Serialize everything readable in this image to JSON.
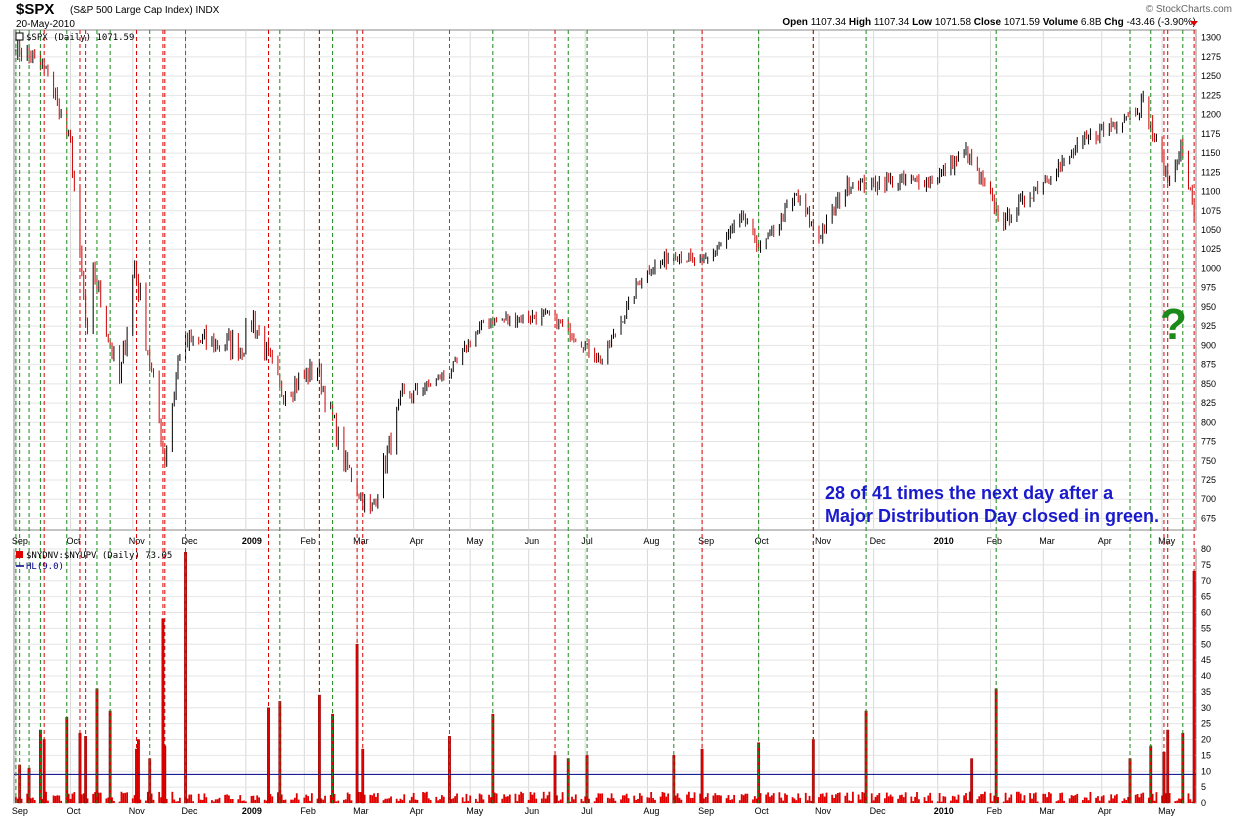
{
  "header": {
    "symbol": "$SPX",
    "name": "(S&P 500 Large Cap Index) INDX",
    "date": "20-May-2010",
    "credit": "© StockCharts.com",
    "ohlc": {
      "open_label": "Open",
      "open": "1107.34",
      "high_label": "High",
      "high": "1107.34",
      "low_label": "Low",
      "low": "1071.58",
      "close_label": "Close",
      "close": "1071.59",
      "volume_label": "Volume",
      "volume": "6.8B",
      "chg_label": "Chg",
      "chg": "-43.46 (-3.90%)"
    }
  },
  "annotation": {
    "line1": "28 of 41 times the next day after a",
    "line2": "Major Distribution Day closed in green.",
    "question_mark": "?"
  },
  "colors": {
    "up": "#000000",
    "down": "#cc0000",
    "green_line": "#1a8a1a",
    "red_line": "#dd0000",
    "bars": "#e00000",
    "hl_line": "#000088",
    "note": "#1a1acc"
  },
  "chart_data": [
    {
      "type": "line",
      "legend": "$SPX (Daily) 1071.59",
      "ylim": [
        660,
        1310
      ],
      "yticks": [
        675,
        700,
        725,
        750,
        775,
        800,
        825,
        850,
        875,
        900,
        925,
        950,
        975,
        1000,
        1025,
        1050,
        1075,
        1100,
        1125,
        1150,
        1175,
        1200,
        1225,
        1250,
        1275,
        1300
      ],
      "month_labels": [
        "Sep",
        "Oct",
        "Nov",
        "Dec",
        "2009",
        "Feb",
        "Mar",
        "Apr",
        "May",
        "Jun",
        "Jul",
        "Aug",
        "Sep",
        "Oct",
        "Nov",
        "Dec",
        "2010",
        "Feb",
        "Mar",
        "Apr",
        "May"
      ],
      "x": [
        "2008-09-02",
        "2008-09-19",
        "2008-10-01",
        "2008-10-10",
        "2008-10-13",
        "2008-10-27",
        "2008-11-04",
        "2008-11-20",
        "2008-11-28",
        "2008-12-08",
        "2008-12-31",
        "2009-01-06",
        "2009-01-20",
        "2009-02-09",
        "2009-02-23",
        "2009-03-09",
        "2009-03-26",
        "2009-04-20",
        "2009-05-08",
        "2009-06-12",
        "2009-07-10",
        "2009-07-31",
        "2009-08-17",
        "2009-09-01",
        "2009-09-23",
        "2009-10-02",
        "2009-10-21",
        "2009-11-02",
        "2009-11-17",
        "2009-12-01",
        "2009-12-31",
        "2010-01-19",
        "2010-02-08",
        "2010-02-25",
        "2010-03-26",
        "2010-04-23",
        "2010-05-07",
        "2010-05-13",
        "2010-05-20"
      ],
      "close": [
        1290,
        1255,
        1160,
        900,
        1000,
        850,
        1005,
        752,
        895,
        905,
        900,
        935,
        840,
        870,
        750,
        680,
        830,
        865,
        930,
        940,
        880,
        990,
        1020,
        1005,
        1065,
        1025,
        1095,
        1040,
        1110,
        1110,
        1115,
        1150,
        1060,
        1105,
        1170,
        1215,
        1110,
        1160,
        1072
      ]
    },
    {
      "type": "bar",
      "legend": "$NYDNV:$NYUPV (Daily) 73.05",
      "legend2": "HL(9.0)",
      "ylim": [
        0,
        80
      ],
      "yticks": [
        0,
        5,
        10,
        15,
        20,
        25,
        30,
        35,
        40,
        45,
        50,
        55,
        60,
        65,
        70,
        75,
        80
      ],
      "hl": 9,
      "spikes": [
        {
          "date": "2008-09-04",
          "value": 12
        },
        {
          "date": "2008-09-09",
          "value": 11
        },
        {
          "date": "2008-09-15",
          "value": 23
        },
        {
          "date": "2008-09-17",
          "value": 20
        },
        {
          "date": "2008-09-29",
          "value": 27
        },
        {
          "date": "2008-10-06",
          "value": 22
        },
        {
          "date": "2008-10-09",
          "value": 21
        },
        {
          "date": "2008-10-15",
          "value": 36
        },
        {
          "date": "2008-10-22",
          "value": 29
        },
        {
          "date": "2008-11-05",
          "value": 17
        },
        {
          "date": "2008-11-06",
          "value": 20
        },
        {
          "date": "2008-11-12",
          "value": 14
        },
        {
          "date": "2008-11-19",
          "value": 58
        },
        {
          "date": "2008-11-20",
          "value": 18
        },
        {
          "date": "2008-12-01",
          "value": 79
        },
        {
          "date": "2009-01-14",
          "value": 30
        },
        {
          "date": "2009-01-20",
          "value": 32
        },
        {
          "date": "2009-02-10",
          "value": 34
        },
        {
          "date": "2009-02-17",
          "value": 28
        },
        {
          "date": "2009-03-02",
          "value": 50
        },
        {
          "date": "2009-03-05",
          "value": 17
        },
        {
          "date": "2009-04-20",
          "value": 21
        },
        {
          "date": "2009-05-13",
          "value": 28
        },
        {
          "date": "2009-06-15",
          "value": 15
        },
        {
          "date": "2009-06-22",
          "value": 14
        },
        {
          "date": "2009-07-02",
          "value": 15
        },
        {
          "date": "2009-08-17",
          "value": 15
        },
        {
          "date": "2009-09-01",
          "value": 17
        },
        {
          "date": "2009-10-01",
          "value": 19
        },
        {
          "date": "2009-10-30",
          "value": 20
        },
        {
          "date": "2009-11-27",
          "value": 29
        },
        {
          "date": "2010-01-22",
          "value": 14
        },
        {
          "date": "2010-02-04",
          "value": 36
        },
        {
          "date": "2010-04-16",
          "value": 14
        },
        {
          "date": "2010-04-27",
          "value": 18
        },
        {
          "date": "2010-05-04",
          "value": 16
        },
        {
          "date": "2010-05-06",
          "value": 23
        },
        {
          "date": "2010-05-14",
          "value": 22
        },
        {
          "date": "2010-05-20",
          "value": 73
        }
      ]
    }
  ],
  "distribution_days": {
    "green": [
      "2008-09-02",
      "2008-09-04",
      "2008-09-09",
      "2008-09-15",
      "2008-09-29",
      "2008-10-15",
      "2008-10-22",
      "2008-11-12",
      "2008-12-01",
      "2009-01-14",
      "2009-01-20",
      "2009-02-10",
      "2009-02-17",
      "2009-04-20",
      "2009-05-13",
      "2009-06-22",
      "2009-07-02",
      "2009-08-17",
      "2009-10-01",
      "2009-10-30",
      "2009-11-27",
      "2010-02-04",
      "2010-04-16",
      "2010-04-27",
      "2010-05-14"
    ],
    "red": [
      "2008-09-17",
      "2008-10-06",
      "2008-10-09",
      "2008-11-05",
      "2008-11-19",
      "2008-11-20",
      "2009-01-14",
      "2009-02-10",
      "2009-03-02",
      "2009-03-05",
      "2009-06-15",
      "2009-09-01",
      "2009-10-30",
      "2010-05-04",
      "2010-05-06",
      "2010-05-20"
    ]
  }
}
